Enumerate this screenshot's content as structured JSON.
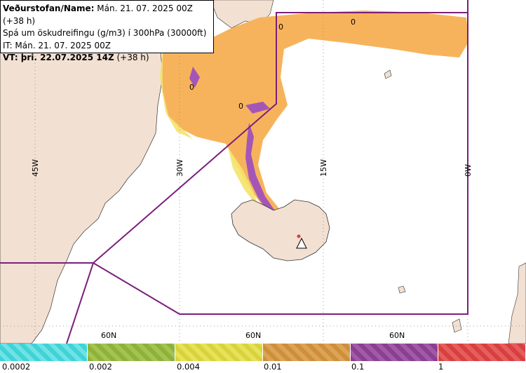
{
  "info": {
    "line1_bold": "Veðurstofan/Name:",
    "line1_rest": " Mán. 21. 07. 2025 00Z (+38 h)",
    "line2": "Spá um öskudreifingu (g/m3) í 300hPa (30000ft)",
    "line3": "IT: Mán. 21. 07. 2025 00Z",
    "line4_bold": "VT: þri. 22.07.2025 14Z",
    "line4_rest": " (+38 h)"
  },
  "grid_labels": {
    "lon": [
      "45W",
      "30W",
      "15W",
      "0W"
    ],
    "lat": [
      "60N",
      "60N",
      "60N"
    ]
  },
  "contour_labels": [
    "0",
    "0",
    "0",
    "0"
  ],
  "legend": {
    "labels": [
      "0.0002",
      "0.002",
      "0.004",
      "0.01",
      "0.1",
      "1"
    ],
    "colors": [
      "#3ed3d6",
      "#8db23a",
      "#d8d33c",
      "#cf8e3a",
      "#8a3f90",
      "#d93f3f"
    ]
  },
  "colors": {
    "land": "#f2e0d2",
    "ash_orange": "#f7b35b",
    "ash_yellow": "#f4e36a",
    "ash_cyan": "#aef0f0",
    "ash_purple": "#a456b6",
    "boundary": "#7b1f7b"
  }
}
